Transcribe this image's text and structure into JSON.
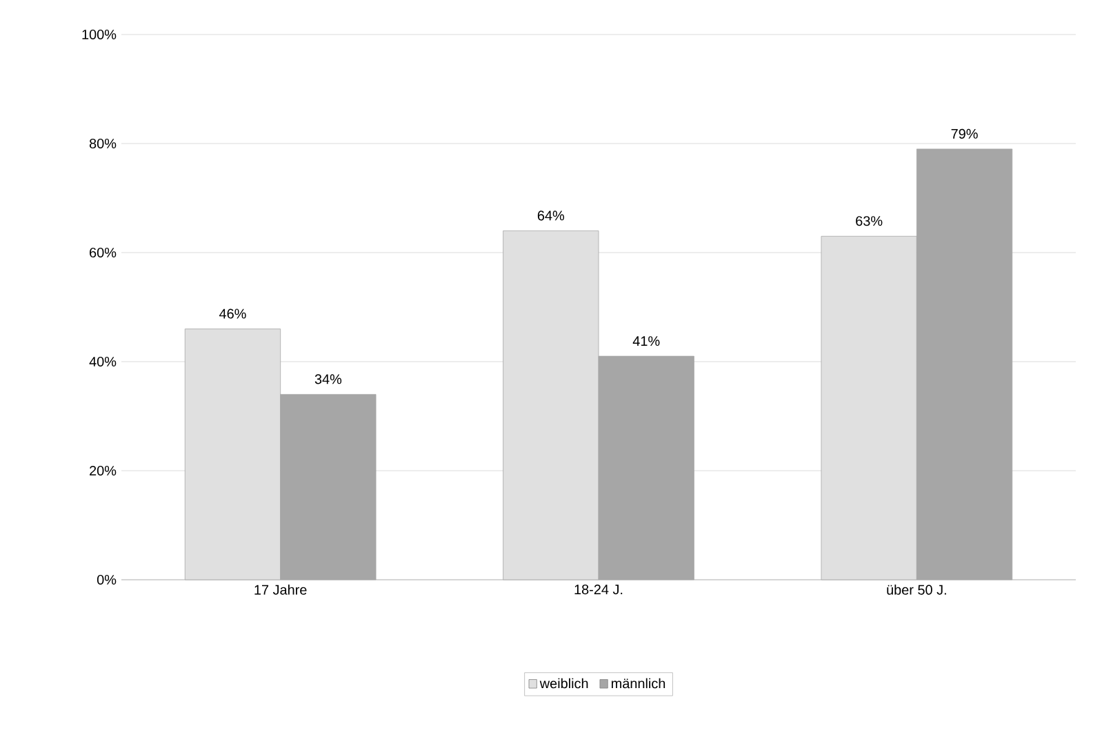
{
  "chart_data": {
    "type": "bar",
    "categories": [
      "17 Jahre",
      "18-24 J.",
      "über 50 J."
    ],
    "series": [
      {
        "name": "weiblich",
        "color": "#e0e0e0",
        "values": [
          46,
          64,
          63
        ],
        "value_labels": [
          "46%",
          "64%",
          "63%"
        ]
      },
      {
        "name": "männlich",
        "color": "#a6a6a6",
        "values": [
          34,
          41,
          79
        ],
        "value_labels": [
          "34%",
          "41%",
          "79%"
        ]
      }
    ],
    "ylim": [
      0,
      100
    ],
    "yticks": [
      {
        "value": 0,
        "label": "0%"
      },
      {
        "value": 20,
        "label": "20%"
      },
      {
        "value": 40,
        "label": "40%"
      },
      {
        "value": 60,
        "label": "60%"
      },
      {
        "value": 80,
        "label": "80%"
      },
      {
        "value": 100,
        "label": "100%"
      }
    ],
    "grid": "y",
    "legend": "bottom"
  }
}
